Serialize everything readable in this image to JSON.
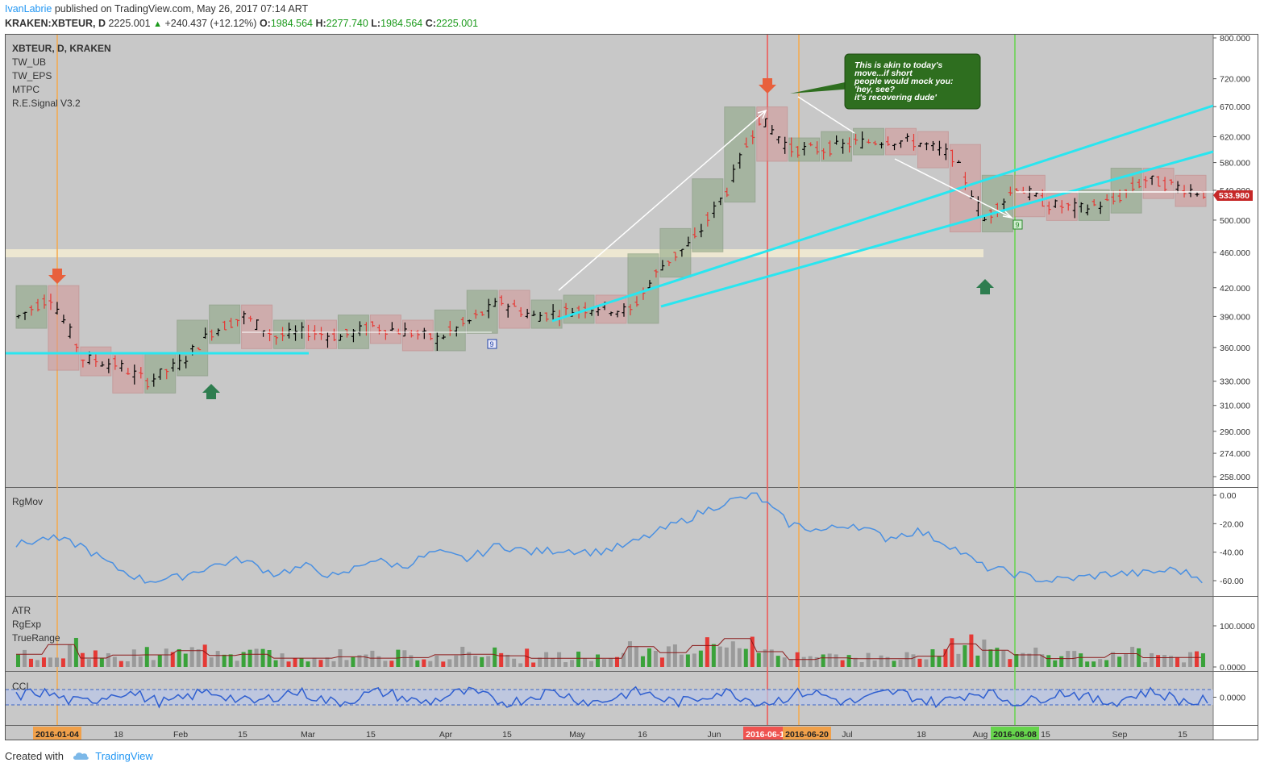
{
  "header": {
    "author": "IvanLabrie",
    "published_text": "published on TradingView.com, May 26, 2017 07:14 ART",
    "symbol": "KRAKEN:XBTEUR, D",
    "last": "2225.001",
    "change": "+240.437 (+12.12%)",
    "o_label": "O:",
    "o": "1984.564",
    "h_label": "H:",
    "h": "2277.740",
    "l_label": "L:",
    "l": "1984.564",
    "c_label": "C:",
    "c": "2225.001"
  },
  "legend": {
    "title": "XBTEUR, D, KRAKEN",
    "indicators": [
      "TW_UB",
      "TW_EPS",
      "MTPC",
      "R.E.Signal V3.2"
    ]
  },
  "annotation": {
    "lines": [
      "This is akin to today's",
      "move...if short",
      "people would mock you:",
      "'hey, see?",
      "it's recovering dude'"
    ]
  },
  "price_tag": "533.980",
  "panes": {
    "rgmov": "RgMov",
    "atr": [
      "ATR",
      "RgExp",
      "TrueRange"
    ],
    "cci": "CCI"
  },
  "time_labels": [
    "18",
    "Feb",
    "15",
    "Mar",
    "15",
    "Apr",
    "15",
    "May",
    "16",
    "Jun",
    "Jul",
    "18",
    "Aug",
    "15",
    "Sep",
    "15"
  ],
  "date_markers": [
    "2016-01-04",
    "2016-06-13",
    "2016-06-20",
    "2016-08-08"
  ],
  "footer": {
    "created_with": "Created with",
    "brand": "TradingView"
  },
  "colors": {
    "background": "#c8c8c8",
    "up": "#3a8c2a",
    "down": "#e53935",
    "cyan": "#29e6f0",
    "orange": "#f5a94a",
    "red_marker": "#ef5350",
    "green_marker": "#66d44c",
    "rgmov_line": "#4a90e2"
  },
  "chart_data": [
    {
      "type": "line",
      "title": "XBTEUR, D, KRAKEN",
      "x": [
        "2016-01-04",
        "2016-01-11",
        "2016-01-18",
        "2016-01-25",
        "2016-02-01",
        "2016-02-08",
        "2016-02-15",
        "2016-02-22",
        "2016-02-29",
        "2016-03-07",
        "2016-03-14",
        "2016-03-21",
        "2016-03-28",
        "2016-04-04",
        "2016-04-11",
        "2016-04-18",
        "2016-04-25",
        "2016-05-02",
        "2016-05-09",
        "2016-05-16",
        "2016-05-23",
        "2016-05-30",
        "2016-06-06",
        "2016-06-13",
        "2016-06-20",
        "2016-06-27",
        "2016-07-04",
        "2016-07-11",
        "2016-07-18",
        "2016-07-25",
        "2016-08-01",
        "2016-08-08",
        "2016-08-15",
        "2016-08-22",
        "2016-08-29",
        "2016-09-05",
        "2016-09-12",
        "2016-09-19"
      ],
      "series": [
        {
          "values": [
            390,
            410,
            350,
            345,
            330,
            345,
            375,
            390,
            370,
            375,
            370,
            380,
            375,
            368,
            385,
            405,
            390,
            395,
            400,
            395,
            445,
            475,
            540,
            650,
            600,
            600,
            610,
            615,
            610,
            590,
            500,
            545,
            520,
            515,
            525,
            555,
            545,
            534
          ]
        }
      ],
      "y_ticks": [
        "800.000",
        "720.000",
        "670.000",
        "620.000",
        "580.000",
        "540.000",
        "500.000",
        "460.000",
        "420.000",
        "390.000",
        "360.000",
        "330.000",
        "310.000",
        "290.000",
        "274.000",
        "258.000"
      ],
      "y_scale": "log"
    },
    {
      "type": "line",
      "title": "RgMov",
      "series": [
        {
          "values": [
            -35,
            -30,
            -35,
            -50,
            -60,
            -58,
            -50,
            -45,
            -55,
            -50,
            -58,
            -45,
            -50,
            -40,
            -45,
            -35,
            -40,
            -38,
            -40,
            -35,
            -25,
            -15,
            -5,
            0,
            -20,
            -25,
            -20,
            -30,
            -25,
            -35,
            -50,
            -55,
            -60,
            -58,
            -55,
            -55,
            -52,
            -60
          ]
        }
      ],
      "y_ticks": [
        "0.00",
        "-20.00",
        "-40.00",
        "-60.00"
      ]
    },
    {
      "type": "bar",
      "title": "ATR",
      "y_ticks": [
        "100.0000",
        "0.0000"
      ]
    },
    {
      "type": "line",
      "title": "CCI",
      "y_ticks": [
        "0.0000"
      ]
    }
  ]
}
